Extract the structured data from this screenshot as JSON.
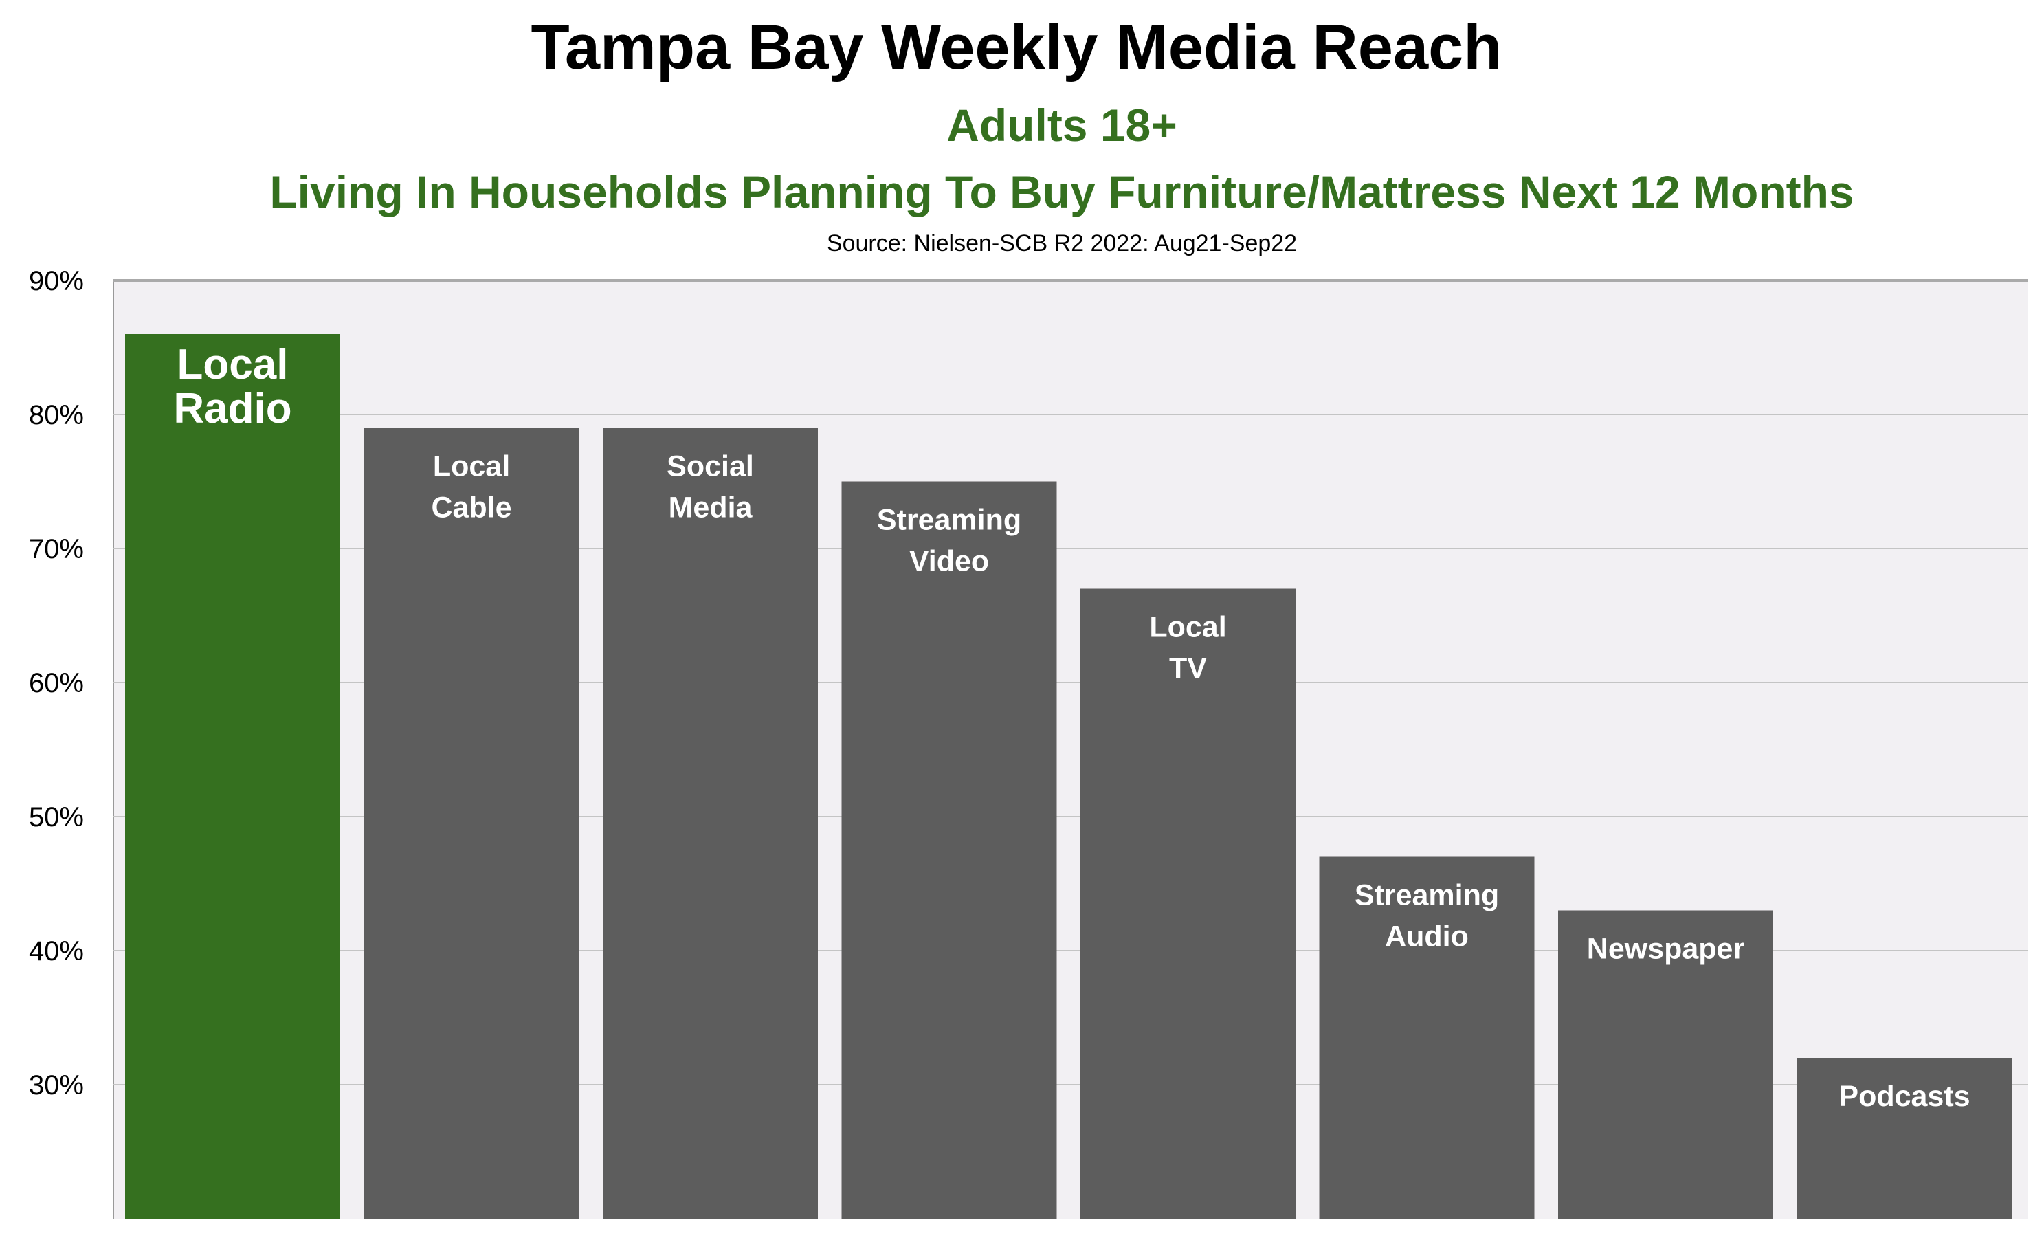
{
  "chart_data": {
    "type": "bar",
    "title": "Tampa Bay Weekly Media Reach",
    "subtitle": "Adults 18+",
    "subtitle2": "Living In Households Planning To Buy Furniture/Mattress Next 12 Months",
    "source": "Source: Nielsen-SCB R2 2022:  Aug21-Sep22",
    "xlabel": "",
    "ylabel": "",
    "ylim": [
      20,
      90
    ],
    "yticks": [
      "30%",
      "40%",
      "50%",
      "60%",
      "70%",
      "80%",
      "90%"
    ],
    "grid": true,
    "categories": [
      [
        "Local",
        "Radio"
      ],
      [
        "Local",
        "Cable"
      ],
      [
        "Social",
        "Media"
      ],
      [
        "Streaming",
        "Video"
      ],
      [
        "Local",
        "TV"
      ],
      [
        "Streaming",
        "Audio"
      ],
      [
        "Newspaper"
      ],
      [
        "Podcasts"
      ]
    ],
    "values": [
      86,
      79,
      79,
      75,
      67,
      47,
      43,
      32
    ],
    "colors": {
      "highlight": "#35701f",
      "default": "#5d5d5d",
      "plot_bg": "#f2f0f3",
      "grid": "#c4c4c4"
    }
  }
}
